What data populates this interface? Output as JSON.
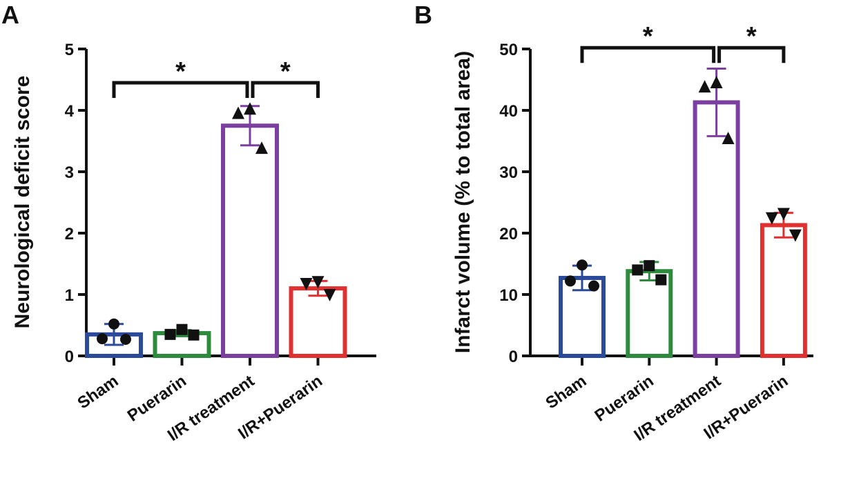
{
  "chart_data": [
    {
      "panel": "A",
      "type": "bar",
      "ylabel": "Neurological deficit score",
      "ylim": [
        0,
        5
      ],
      "yticks": [
        0,
        1,
        2,
        3,
        4,
        5
      ],
      "categories": [
        "Sham",
        "Puerarin",
        "I/R treatment",
        "I/R+Puerarin"
      ],
      "values": [
        0.35,
        0.37,
        3.75,
        1.1
      ],
      "error": [
        0.17,
        0.05,
        0.32,
        0.12
      ],
      "colors": [
        "#2b4a9a",
        "#2e8b3e",
        "#7b3fa0",
        "#e03030"
      ],
      "markers": [
        "circle",
        "square",
        "triangle-up",
        "triangle-down"
      ],
      "points": [
        [
          0.52,
          0.28,
          0.27
        ],
        [
          0.43,
          0.35,
          0.34
        ],
        [
          4.02,
          3.95,
          3.38
        ],
        [
          1.21,
          1.18,
          1.0
        ]
      ],
      "significance": [
        {
          "from": 0,
          "to": 2,
          "label": "*",
          "level": 4.45
        },
        {
          "from": 2,
          "to": 3,
          "label": "*",
          "level": 4.45
        }
      ]
    },
    {
      "panel": "B",
      "type": "bar",
      "ylabel": "Infarct volume (% to total area)",
      "ylim": [
        0,
        50
      ],
      "yticks": [
        0,
        10,
        20,
        30,
        40,
        50
      ],
      "categories": [
        "Sham",
        "Puerarin",
        "I/R treatment",
        "I/R+Puerarin"
      ],
      "values": [
        12.7,
        13.8,
        41.3,
        21.3
      ],
      "error": [
        2.0,
        1.5,
        5.5,
        2.0
      ],
      "colors": [
        "#2b4a9a",
        "#2e8b3e",
        "#7b3fa0",
        "#e03030"
      ],
      "markers": [
        "circle",
        "square",
        "triangle-up",
        "triangle-down"
      ],
      "points": [
        [
          14.8,
          12.2,
          11.4
        ],
        [
          14.7,
          14.0,
          12.4
        ],
        [
          44.5,
          43.8,
          35.4
        ],
        [
          23.2,
          22.5,
          19.7
        ]
      ],
      "significance": [
        {
          "from": 0,
          "to": 2,
          "label": "*",
          "level": 50.2
        },
        {
          "from": 2,
          "to": 3,
          "label": "*",
          "level": 50.2
        }
      ]
    }
  ]
}
